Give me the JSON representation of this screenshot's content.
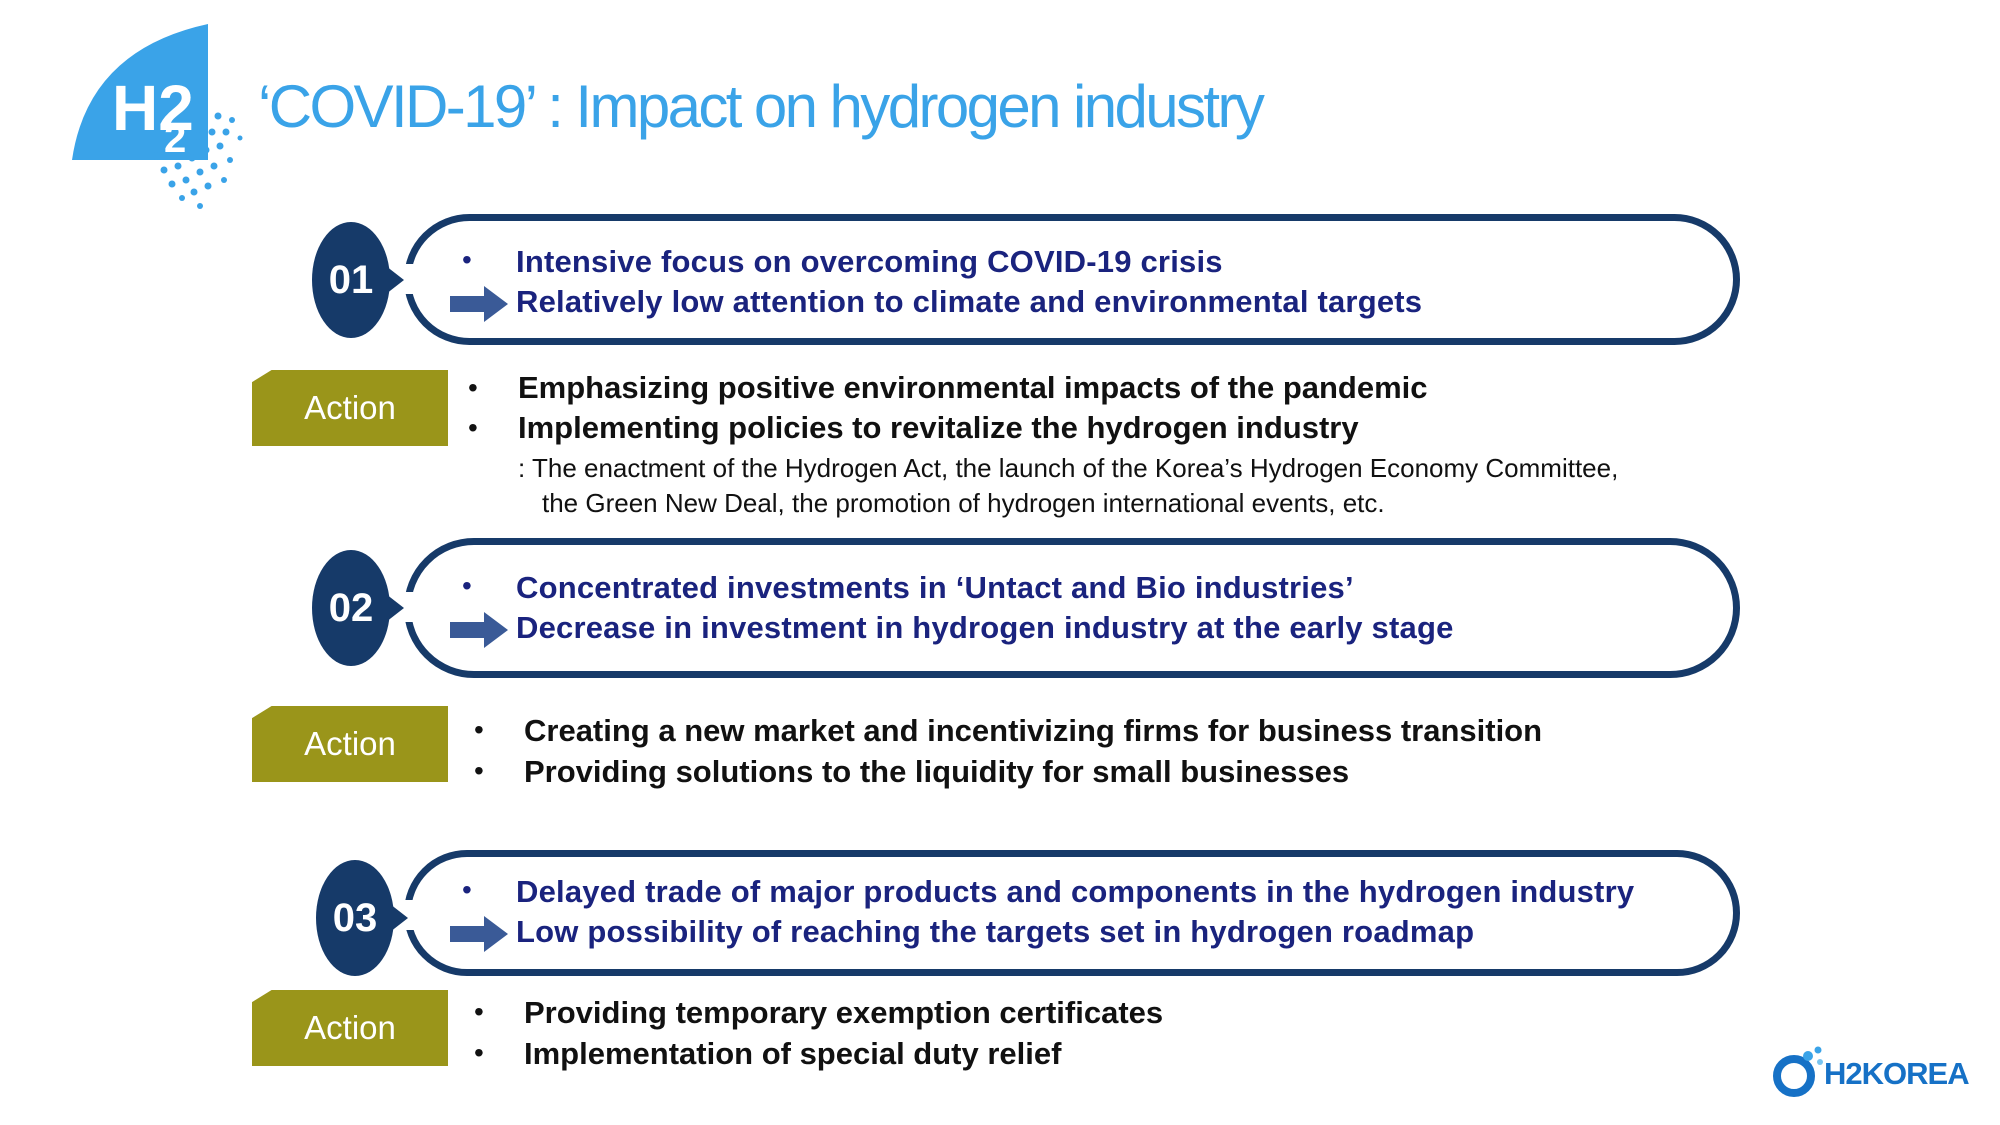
{
  "title": "‘COVID-19’ : Impact on hydrogen industry",
  "logo": {
    "text": "H2",
    "sub": "2"
  },
  "sections": [
    {
      "number": "01",
      "bullet": "Intensive focus on overcoming COVID-19 crisis",
      "result": "Relatively low attention to climate and environmental targets",
      "action_label": "Action",
      "actions": [
        "Emphasizing positive environmental impacts of the pandemic",
        "Implementing policies to revitalize the hydrogen industry"
      ],
      "note_1": ": The enactment of the Hydrogen Act, the launch of the Korea’s Hydrogen Economy Committee,",
      "note_2": "the Green New Deal, the promotion of hydrogen international events, etc."
    },
    {
      "number": "02",
      "bullet": "Concentrated investments in ‘Untact and Bio industries’",
      "result": "Decrease in investment in hydrogen industry at the early stage",
      "action_label": "Action",
      "actions": [
        "Creating a new market and incentivizing firms for business transition",
        "Providing solutions to the liquidity for small businesses"
      ]
    },
    {
      "number": "03",
      "bullet": "Delayed trade of major products and components in the hydrogen industry",
      "result": "Low possibility of reaching the targets set in hydrogen roadmap",
      "action_label": "Action",
      "actions": [
        "Providing temporary exemption certificates",
        "Implementation of special duty relief"
      ]
    }
  ],
  "brand": {
    "text": "H2KOREA"
  },
  "colors": {
    "navy": "#163a69",
    "title_blue": "#3aa3e8",
    "olive": "#9a951a",
    "text_blue": "#1a237e"
  }
}
